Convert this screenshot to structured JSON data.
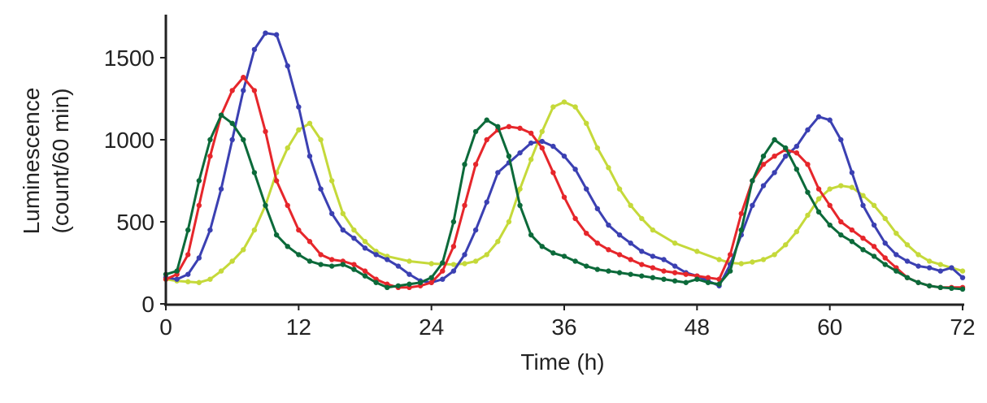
{
  "chart_data": {
    "type": "line",
    "title": "",
    "xlabel": "Time (h)",
    "ylabel_lines": [
      "Luminescence",
      "(count/60 min)"
    ],
    "xlim": [
      0,
      72
    ],
    "ylim": [
      0,
      1750
    ],
    "xticks": [
      0,
      12,
      24,
      36,
      48,
      60,
      72
    ],
    "yticks": [
      0,
      500,
      1000,
      1500
    ],
    "grid": false,
    "legend": "none",
    "series": [
      {
        "name": "yellow",
        "color": "#c5d93a",
        "x": [
          0,
          1,
          2,
          3,
          4,
          5,
          6,
          7,
          8,
          9,
          10,
          11,
          12,
          13,
          14,
          15,
          16,
          17,
          18,
          19,
          20,
          22,
          24,
          26,
          27,
          28,
          29,
          30,
          31,
          32,
          33,
          34,
          35,
          36,
          37,
          38,
          39,
          40,
          41,
          42,
          43,
          44,
          46,
          48,
          50,
          51,
          52,
          53,
          54,
          55,
          56,
          57,
          58,
          59,
          60,
          61,
          62,
          63,
          64,
          65,
          66,
          67,
          68,
          69,
          70,
          71,
          72
        ],
        "y": [
          150,
          140,
          135,
          130,
          150,
          200,
          260,
          330,
          450,
          600,
          800,
          950,
          1060,
          1100,
          1000,
          750,
          550,
          450,
          380,
          320,
          290,
          260,
          245,
          240,
          245,
          260,
          300,
          380,
          500,
          700,
          880,
          1050,
          1200,
          1230,
          1200,
          1100,
          950,
          830,
          700,
          600,
          520,
          450,
          370,
          320,
          270,
          250,
          245,
          255,
          270,
          300,
          360,
          440,
          540,
          640,
          700,
          720,
          710,
          660,
          600,
          520,
          430,
          360,
          300,
          260,
          240,
          220,
          200
        ]
      },
      {
        "name": "blue",
        "color": "#3b40b2",
        "x": [
          0,
          1,
          2,
          3,
          4,
          5,
          6,
          7,
          8,
          9,
          10,
          11,
          12,
          13,
          14,
          15,
          16,
          17,
          18,
          19,
          20,
          21,
          22,
          23,
          24,
          25,
          26,
          27,
          28,
          29,
          30,
          31,
          32,
          33,
          34,
          35,
          36,
          37,
          38,
          39,
          40,
          41,
          42,
          43,
          44,
          45,
          46,
          47,
          48,
          49,
          50,
          51,
          52,
          53,
          54,
          55,
          56,
          57,
          58,
          59,
          60,
          61,
          62,
          63,
          64,
          65,
          66,
          67,
          68,
          69,
          70,
          71,
          72
        ],
        "y": [
          160,
          150,
          180,
          280,
          450,
          700,
          1000,
          1300,
          1550,
          1650,
          1640,
          1450,
          1200,
          900,
          700,
          550,
          450,
          400,
          340,
          300,
          270,
          230,
          180,
          140,
          130,
          150,
          200,
          300,
          450,
          620,
          800,
          860,
          920,
          980,
          990,
          960,
          900,
          820,
          700,
          580,
          480,
          420,
          370,
          320,
          290,
          270,
          230,
          190,
          170,
          140,
          110,
          240,
          420,
          600,
          720,
          800,
          900,
          960,
          1060,
          1140,
          1120,
          1000,
          800,
          600,
          480,
          370,
          300,
          260,
          230,
          220,
          200,
          220,
          160
        ]
      },
      {
        "name": "red",
        "color": "#e6262b",
        "x": [
          0,
          1,
          2,
          3,
          4,
          5,
          6,
          7,
          8,
          9,
          10,
          11,
          12,
          13,
          14,
          15,
          16,
          17,
          18,
          19,
          20,
          21,
          22,
          23,
          24,
          25,
          26,
          27,
          28,
          29,
          30,
          31,
          32,
          33,
          34,
          35,
          36,
          37,
          38,
          39,
          40,
          41,
          42,
          43,
          44,
          45,
          46,
          47,
          48,
          49,
          50,
          51,
          52,
          53,
          54,
          55,
          56,
          57,
          58,
          59,
          60,
          61,
          62,
          63,
          64,
          65,
          66,
          67,
          68,
          69,
          70,
          71,
          72
        ],
        "y": [
          150,
          180,
          300,
          600,
          900,
          1150,
          1300,
          1380,
          1300,
          1050,
          750,
          600,
          450,
          380,
          300,
          270,
          260,
          240,
          200,
          150,
          120,
          100,
          100,
          110,
          130,
          200,
          350,
          600,
          850,
          1000,
          1060,
          1080,
          1070,
          1040,
          950,
          800,
          650,
          520,
          430,
          370,
          330,
          300,
          270,
          240,
          220,
          200,
          190,
          180,
          170,
          160,
          150,
          300,
          550,
          750,
          850,
          900,
          940,
          920,
          850,
          700,
          600,
          500,
          450,
          400,
          350,
          280,
          220,
          160,
          130,
          110,
          100,
          100,
          100
        ]
      },
      {
        "name": "green",
        "color": "#0c6a3a",
        "x": [
          0,
          1,
          2,
          3,
          4,
          5,
          6,
          7,
          8,
          9,
          10,
          11,
          12,
          13,
          14,
          15,
          16,
          17,
          18,
          19,
          20,
          21,
          22,
          23,
          24,
          25,
          26,
          27,
          28,
          29,
          30,
          31,
          32,
          33,
          34,
          35,
          36,
          37,
          38,
          39,
          40,
          41,
          42,
          43,
          44,
          45,
          46,
          47,
          48,
          49,
          50,
          51,
          52,
          53,
          54,
          55,
          56,
          57,
          58,
          59,
          60,
          61,
          62,
          63,
          64,
          65,
          66,
          67,
          68,
          69,
          70,
          71,
          72
        ],
        "y": [
          180,
          200,
          450,
          750,
          1000,
          1150,
          1100,
          1000,
          800,
          600,
          420,
          350,
          300,
          260,
          240,
          230,
          240,
          210,
          170,
          130,
          100,
          110,
          120,
          130,
          160,
          250,
          500,
          850,
          1050,
          1120,
          1080,
          900,
          600,
          420,
          350,
          310,
          290,
          260,
          230,
          210,
          200,
          190,
          180,
          170,
          160,
          150,
          140,
          130,
          150,
          130,
          120,
          200,
          450,
          750,
          900,
          1000,
          950,
          820,
          680,
          560,
          480,
          420,
          380,
          330,
          290,
          240,
          200,
          160,
          130,
          110,
          100,
          95,
          90
        ]
      }
    ]
  }
}
